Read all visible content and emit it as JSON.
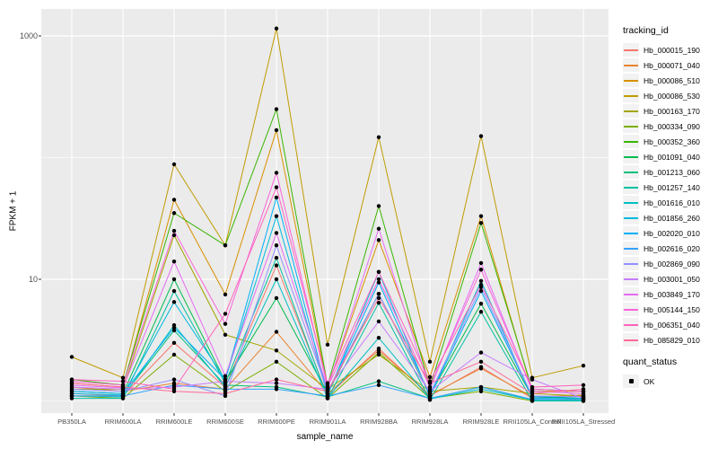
{
  "chart_data": {
    "type": "line",
    "title": "",
    "xlabel": "sample_name",
    "ylabel": "FPKM + 1",
    "y_scale": "log10",
    "ylim": [
      0.795,
      1664
    ],
    "y_ticks": [
      {
        "label": "10",
        "value": 10
      },
      {
        "label": "1000",
        "value": 1000
      }
    ],
    "y_minor_values": [
      1,
      100
    ],
    "grid": "on",
    "legend_position": "right",
    "categories": [
      "PB350LA",
      "RRIM600LA",
      "RRIM600LE",
      "RRIM600SE",
      "RRIM600PE",
      "RRIM901LA",
      "RRIM928BA",
      "RRIM928LA",
      "RRIM928LE",
      "RRII105LA_Control",
      "RRII105LA_Stressed"
    ],
    "legend": {
      "title": "tracking_id"
    },
    "quant_legend": {
      "title": "quant_status",
      "items": [
        {
          "label": "OK"
        }
      ]
    },
    "point": {
      "color": "#000000"
    },
    "series": [
      {
        "name": "Hb_000015_190",
        "color": "#F8766D",
        "values": [
          1.15,
          1.1,
          3.0,
          1.3,
          13,
          1.1,
          2.7,
          1.1,
          1.9,
          1.05,
          1.1
        ]
      },
      {
        "name": "Hb_000071_040",
        "color": "#EA8331",
        "values": [
          1.3,
          1.2,
          1.4,
          1.25,
          3.7,
          1.15,
          2.6,
          1.12,
          1.85,
          1.08,
          1.12
        ]
      },
      {
        "name": "Hb_000086_510",
        "color": "#D89000",
        "values": [
          1.4,
          1.3,
          45,
          7.5,
          168,
          1.3,
          21,
          1.57,
          33,
          1.2,
          1.2
        ]
      },
      {
        "name": "Hb_000086_530",
        "color": "#C09B00",
        "values": [
          2.3,
          1.55,
          88,
          19,
          1150,
          2.9,
          147,
          2.1,
          150,
          1.55,
          1.95
        ]
      },
      {
        "name": "Hb_000163_170",
        "color": "#A3A500",
        "values": [
          1.25,
          1.25,
          23,
          3.5,
          2.6,
          1.25,
          2.4,
          1.2,
          1.3,
          1.15,
          1.1
        ]
      },
      {
        "name": "Hb_000334_090",
        "color": "#7CAE00",
        "values": [
          1.1,
          1.05,
          2.4,
          1.2,
          2.1,
          1.05,
          2.5,
          1.05,
          1.2,
          1.0,
          1.05
        ]
      },
      {
        "name": "Hb_000352_360",
        "color": "#39B600",
        "values": [
          1.5,
          1.35,
          35,
          19,
          250,
          1.35,
          40,
          1.3,
          29,
          1.25,
          1.2
        ]
      },
      {
        "name": "Hb_001091_040",
        "color": "#00BB4E",
        "values": [
          1.2,
          1.15,
          10,
          1.45,
          7,
          1.15,
          7.6,
          1.12,
          6.3,
          1.08,
          1.05
        ]
      },
      {
        "name": "Hb_001213_060",
        "color": "#00BF7D",
        "values": [
          1.1,
          1.1,
          3.8,
          1.35,
          1.3,
          1.08,
          1.45,
          1.05,
          1.3,
          1.02,
          1.0
        ]
      },
      {
        "name": "Hb_001257_140",
        "color": "#00C1A3",
        "values": [
          1.05,
          1.05,
          8.0,
          1.4,
          15,
          1.05,
          6.4,
          1.02,
          5.4,
          1.0,
          1.0
        ]
      },
      {
        "name": "Hb_001616_010",
        "color": "#00BFC4",
        "values": [
          1.1,
          1.08,
          4.2,
          1.3,
          10,
          1.06,
          3.3,
          1.04,
          1.25,
          1.02,
          1.02
        ]
      },
      {
        "name": "Hb_001856_260",
        "color": "#00BAE0",
        "values": [
          1.15,
          1.12,
          6.5,
          1.5,
          33,
          1.12,
          11.5,
          1.08,
          9.7,
          1.05,
          1.05
        ]
      },
      {
        "name": "Hb_002020_010",
        "color": "#00B0F6",
        "values": [
          1.2,
          1.15,
          4.0,
          1.5,
          47,
          1.15,
          9.4,
          1.1,
          8.0,
          1.08,
          1.08
        ]
      },
      {
        "name": "Hb_002616_020",
        "color": "#35A2FF",
        "values": [
          1.1,
          1.1,
          1.35,
          1.25,
          1.25,
          1.1,
          1.35,
          1.05,
          1.3,
          1.03,
          1.03
        ]
      },
      {
        "name": "Hb_002869_090",
        "color": "#9590FF",
        "values": [
          1.25,
          1.2,
          1.5,
          1.1,
          19,
          1.2,
          7.6,
          1.15,
          8.6,
          1.1,
          1.08
        ]
      },
      {
        "name": "Hb_003001_050",
        "color": "#C77CFF",
        "values": [
          1.3,
          1.25,
          1.3,
          1.45,
          1.4,
          1.25,
          4.5,
          1.2,
          2.5,
          1.5,
          1.05
        ]
      },
      {
        "name": "Hb_003849_170",
        "color": "#E76BF3",
        "values": [
          1.35,
          1.28,
          14,
          1.6,
          24,
          1.28,
          26,
          1.25,
          13.6,
          1.2,
          1.15
        ]
      },
      {
        "name": "Hb_005144_150",
        "color": "#FA62DB",
        "values": [
          1.45,
          1.35,
          25,
          4.3,
          75,
          1.3,
          10,
          1.3,
          12,
          1.25,
          1.2
        ]
      },
      {
        "name": "Hb_006351_040",
        "color": "#FF62BC",
        "values": [
          1.5,
          1.45,
          1.25,
          5.2,
          57,
          1.4,
          11.5,
          1.45,
          9.0,
          1.3,
          1.35
        ]
      },
      {
        "name": "Hb_085829_010",
        "color": "#FF6A98",
        "values": [
          1.4,
          1.3,
          1.2,
          1.15,
          1.5,
          1.2,
          7.0,
          1.4,
          2.1,
          1.15,
          1.25
        ]
      }
    ]
  },
  "style": {
    "panel_bg": "#EBEBEB",
    "grid_color": "#FFFFFF",
    "key_bg": "#F2F2F2",
    "tick_text": "#4D4D4D",
    "tick_mark": "#333333",
    "point_color": "#000000"
  }
}
